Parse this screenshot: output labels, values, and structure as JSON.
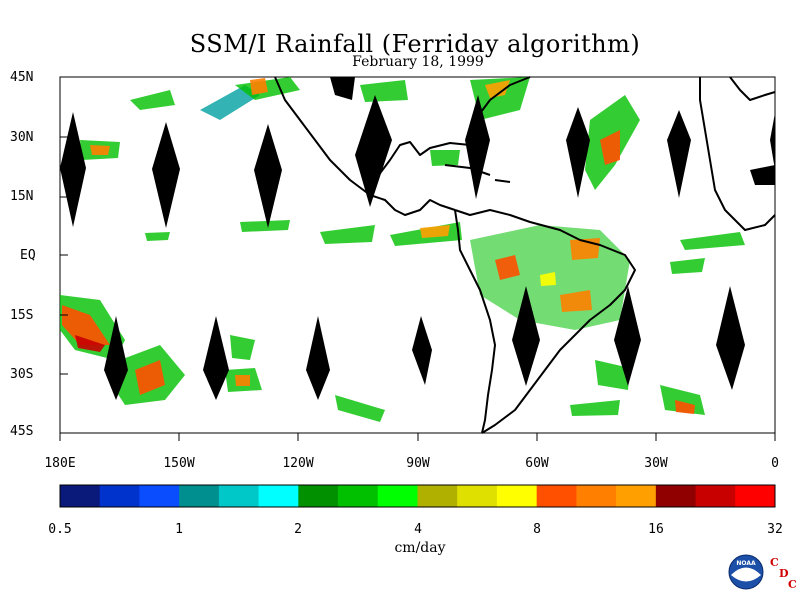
{
  "title": "SSM/I Rainfall (Ferriday algorithm)",
  "subtitle": "February 18, 1999",
  "map": {
    "lat_labels": [
      "45N",
      "30N",
      "15N",
      "EQ",
      "15S",
      "30S",
      "45S"
    ],
    "lon_labels": [
      "180E",
      "150W",
      "120W",
      "90W",
      "60W",
      "30W",
      "0"
    ],
    "lon_range": [
      -180,
      0
    ],
    "lat_range": [
      -45,
      45
    ],
    "background": "#ffffff",
    "swath_gap_shape": "black diamonds between satellite swaths"
  },
  "colorbar": {
    "unit": "cm/day",
    "tick_labels": [
      "0.5",
      "1",
      "2",
      "4",
      "8",
      "16",
      "32"
    ],
    "colors": [
      "#0a1a7a",
      "#0033cc",
      "#0a4dff",
      "#008f8f",
      "#00c8c8",
      "#00ffff",
      "#009000",
      "#00c000",
      "#00ff00",
      "#b0b000",
      "#e0e000",
      "#ffff00",
      "#ff5000",
      "#ff8000",
      "#ffa000",
      "#900000",
      "#c80000",
      "#ff0000"
    ]
  },
  "logo": {
    "noaa_text": "NOAA",
    "cdc_letters": [
      "C",
      "D",
      "C"
    ]
  }
}
